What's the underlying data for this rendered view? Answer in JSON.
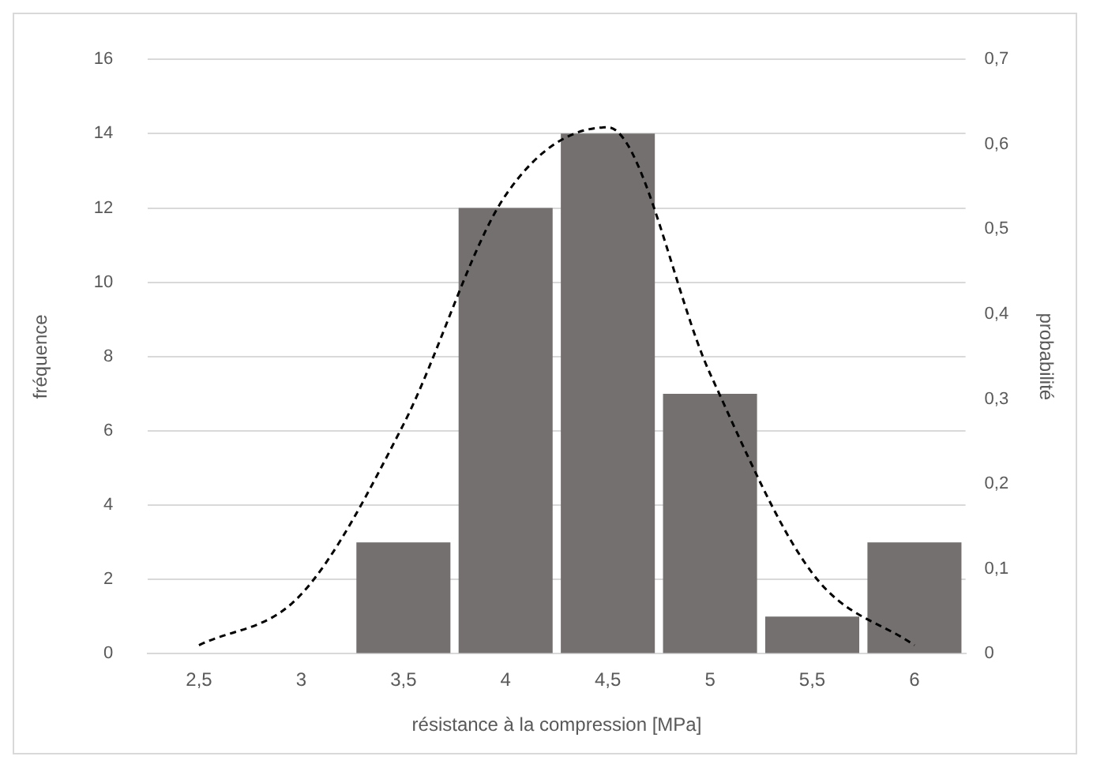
{
  "chart_data": {
    "type": "bar",
    "xlabel": "résistance à la compression [MPa]",
    "ylabel": "fréquence",
    "y2label": "probabilité",
    "categories": [
      "2,5",
      "3",
      "3,5",
      "4",
      "4,5",
      "5",
      "5,5",
      "6"
    ],
    "series": [
      {
        "color": "#757070",
        "values": [
          0,
          0,
          3,
          12,
          14,
          7,
          1,
          3
        ]
      },
      {
        "type": "line",
        "axis": "y2",
        "color": "#000000",
        "line_style": "dashed",
        "marker": "none",
        "values": [
          0.01,
          0.07,
          0.27,
          0.54,
          0.62,
          0.33,
          0.095,
          0.01
        ]
      }
    ],
    "ylim": [
      0,
      16
    ],
    "yticks": [
      0,
      2,
      4,
      6,
      8,
      10,
      12,
      14,
      16
    ],
    "y2lim": [
      0,
      0.7
    ],
    "y2ticks": [
      {
        "value": 0,
        "label": "0"
      },
      {
        "value": 0.1,
        "label": "0,1"
      },
      {
        "value": 0.2,
        "label": "0,2"
      },
      {
        "value": 0.3,
        "label": "0,3"
      },
      {
        "value": 0.4,
        "label": "0,4"
      },
      {
        "value": 0.5,
        "label": "0,5"
      },
      {
        "value": 0.6,
        "label": "0,6"
      },
      {
        "value": 0.7,
        "label": "0,7"
      }
    ],
    "grid": "y",
    "legend": false
  }
}
